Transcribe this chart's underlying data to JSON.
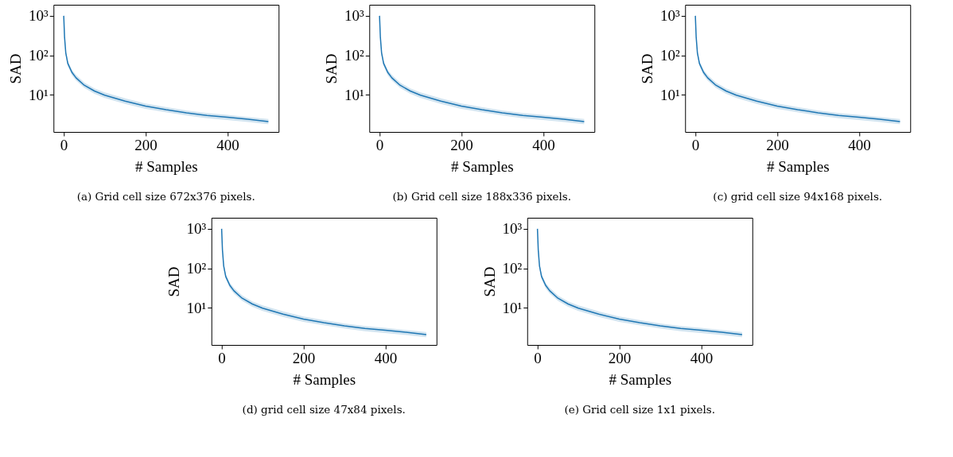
{
  "chart_data": [
    {
      "type": "line",
      "annotations": [
        "(a) Grid cell size 672x376 pixels."
      ],
      "xlabel": "# Samples",
      "ylabel": "SAD",
      "log": "y",
      "xlim": [
        -25,
        525
      ],
      "xticks": [
        0,
        200,
        400
      ],
      "ylim": [
        1.15,
        1900
      ],
      "yticks": [
        {
          "value": 10,
          "label": "10¹"
        },
        {
          "value": 100,
          "label": "10²"
        },
        {
          "value": 1000,
          "label": "10³"
        }
      ],
      "x": [
        0,
        2,
        5,
        10,
        20,
        30,
        50,
        75,
        100,
        150,
        200,
        250,
        300,
        350,
        400,
        450,
        500
      ],
      "series": [
        {
          "color": "#1f77b4",
          "values": [
            1000,
            290,
            115,
            62,
            37,
            27,
            17.5,
            12.5,
            9.8,
            6.9,
            5.2,
            4.2,
            3.5,
            3.0,
            2.7,
            2.4,
            2.1
          ],
          "lower": [
            880,
            250,
            98,
            53,
            31,
            23,
            15,
            10.6,
            8.3,
            5.9,
            4.4,
            3.6,
            3.0,
            2.55,
            2.3,
            2.05,
            1.8
          ],
          "upper": [
            1120,
            335,
            135,
            72,
            43,
            32,
            20.5,
            14.6,
            11.5,
            8.1,
            6.0,
            4.9,
            4.0,
            3.45,
            3.1,
            2.75,
            2.45
          ]
        }
      ]
    },
    {
      "type": "line",
      "annotations": [
        "(b) Grid cell size 188x336 pixels."
      ],
      "xlabel": "# Samples",
      "ylabel": "SAD",
      "log": "y",
      "xlim": [
        -25,
        525
      ],
      "xticks": [
        0,
        200,
        400
      ],
      "ylim": [
        1.15,
        1900
      ],
      "yticks": [
        {
          "value": 10,
          "label": "10¹"
        },
        {
          "value": 100,
          "label": "10²"
        },
        {
          "value": 1000,
          "label": "10³"
        }
      ],
      "x": [
        0,
        2,
        5,
        10,
        20,
        30,
        50,
        75,
        100,
        150,
        200,
        250,
        300,
        350,
        400,
        450,
        500
      ],
      "series": [
        {
          "color": "#1f77b4",
          "values": [
            1000,
            290,
            115,
            62,
            37,
            27,
            17.5,
            12.5,
            9.8,
            6.9,
            5.2,
            4.2,
            3.5,
            3.0,
            2.7,
            2.4,
            2.1
          ],
          "lower": [
            880,
            250,
            98,
            53,
            31,
            23,
            15,
            10.6,
            8.3,
            5.9,
            4.4,
            3.6,
            3.0,
            2.55,
            2.3,
            2.05,
            1.8
          ],
          "upper": [
            1120,
            335,
            135,
            72,
            43,
            32,
            20.5,
            14.6,
            11.5,
            8.1,
            6.0,
            4.9,
            4.0,
            3.45,
            3.1,
            2.75,
            2.45
          ]
        }
      ]
    },
    {
      "type": "line",
      "annotations": [
        "(c) grid cell size 94x168 pixels."
      ],
      "xlabel": "# Samples",
      "ylabel": "SAD",
      "log": "y",
      "xlim": [
        -25,
        525
      ],
      "xticks": [
        0,
        200,
        400
      ],
      "ylim": [
        1.15,
        1900
      ],
      "yticks": [
        {
          "value": 10,
          "label": "10¹"
        },
        {
          "value": 100,
          "label": "10²"
        },
        {
          "value": 1000,
          "label": "10³"
        }
      ],
      "x": [
        0,
        2,
        5,
        10,
        20,
        30,
        50,
        75,
        100,
        150,
        200,
        250,
        300,
        350,
        400,
        450,
        500
      ],
      "series": [
        {
          "color": "#1f77b4",
          "values": [
            1000,
            290,
            115,
            62,
            37,
            27,
            17.5,
            12.5,
            9.8,
            6.9,
            5.2,
            4.2,
            3.5,
            3.0,
            2.7,
            2.4,
            2.1
          ],
          "lower": [
            880,
            250,
            98,
            53,
            31,
            23,
            15,
            10.6,
            8.3,
            5.9,
            4.4,
            3.6,
            3.0,
            2.55,
            2.3,
            2.05,
            1.8
          ],
          "upper": [
            1120,
            335,
            135,
            72,
            43,
            32,
            20.5,
            14.6,
            11.5,
            8.1,
            6.0,
            4.9,
            4.0,
            3.45,
            3.1,
            2.75,
            2.45
          ]
        }
      ]
    },
    {
      "type": "line",
      "annotations": [
        "(d) grid cell size 47x84 pixels."
      ],
      "xlabel": "# Samples",
      "ylabel": "SAD",
      "log": "y",
      "xlim": [
        -25,
        525
      ],
      "xticks": [
        0,
        200,
        400
      ],
      "ylim": [
        1.15,
        1900
      ],
      "yticks": [
        {
          "value": 10,
          "label": "10¹"
        },
        {
          "value": 100,
          "label": "10²"
        },
        {
          "value": 1000,
          "label": "10³"
        }
      ],
      "x": [
        0,
        2,
        5,
        10,
        20,
        30,
        50,
        75,
        100,
        150,
        200,
        250,
        300,
        350,
        400,
        450,
        500
      ],
      "series": [
        {
          "color": "#1f77b4",
          "values": [
            1000,
            290,
            115,
            62,
            37,
            27,
            17.5,
            12.5,
            9.8,
            6.9,
            5.2,
            4.2,
            3.5,
            3.0,
            2.7,
            2.4,
            2.1
          ],
          "lower": [
            880,
            250,
            98,
            53,
            31,
            23,
            15,
            10.6,
            8.3,
            5.9,
            4.4,
            3.6,
            3.0,
            2.55,
            2.3,
            2.05,
            1.8
          ],
          "upper": [
            1120,
            335,
            135,
            72,
            43,
            32,
            20.5,
            14.6,
            11.5,
            8.1,
            6.0,
            4.9,
            4.0,
            3.45,
            3.1,
            2.75,
            2.45
          ]
        }
      ]
    },
    {
      "type": "line",
      "annotations": [
        "(e) Grid cell size 1x1 pixels."
      ],
      "xlabel": "# Samples",
      "ylabel": "SAD",
      "log": "y",
      "xlim": [
        -25,
        525
      ],
      "xticks": [
        0,
        200,
        400
      ],
      "ylim": [
        1.15,
        1900
      ],
      "yticks": [
        {
          "value": 10,
          "label": "10¹"
        },
        {
          "value": 100,
          "label": "10²"
        },
        {
          "value": 1000,
          "label": "10³"
        }
      ],
      "x": [
        0,
        2,
        5,
        10,
        20,
        30,
        50,
        75,
        100,
        150,
        200,
        250,
        300,
        350,
        400,
        450,
        500
      ],
      "series": [
        {
          "color": "#1f77b4",
          "values": [
            1000,
            290,
            115,
            62,
            37,
            27,
            17.5,
            12.5,
            9.8,
            6.9,
            5.2,
            4.2,
            3.5,
            3.0,
            2.7,
            2.4,
            2.1
          ],
          "lower": [
            880,
            250,
            98,
            53,
            31,
            23,
            15,
            10.6,
            8.3,
            5.9,
            4.4,
            3.6,
            3.0,
            2.55,
            2.3,
            2.05,
            1.8
          ],
          "upper": [
            1120,
            335,
            135,
            72,
            43,
            32,
            20.5,
            14.6,
            11.5,
            8.1,
            6.0,
            4.9,
            4.0,
            3.45,
            3.1,
            2.75,
            2.45
          ]
        }
      ]
    }
  ]
}
